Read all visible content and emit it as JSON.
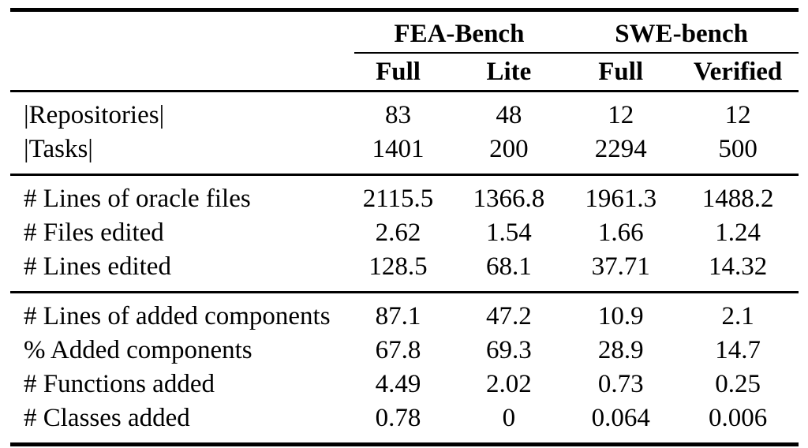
{
  "table": {
    "colors": {
      "rule": "#000000",
      "text": "#000000",
      "background": "#ffffff"
    },
    "group_headers": [
      {
        "label": "FEA-Bench",
        "span": 2
      },
      {
        "label": "SWE-bench",
        "span": 2
      }
    ],
    "sub_headers": [
      "Full",
      "Lite",
      "Full",
      "Verified"
    ],
    "sections": [
      {
        "rows": [
          {
            "label": "|Repositories|",
            "values": [
              "83",
              "48",
              "12",
              "12"
            ]
          },
          {
            "label": "|Tasks|",
            "values": [
              "1401",
              "200",
              "2294",
              "500"
            ]
          }
        ]
      },
      {
        "rows": [
          {
            "label": "# Lines of oracle files",
            "values": [
              "2115.5",
              "1366.8",
              "1961.3",
              "1488.2"
            ]
          },
          {
            "label": "# Files edited",
            "values": [
              "2.62",
              "1.54",
              "1.66",
              "1.24"
            ]
          },
          {
            "label": "# Lines edited",
            "values": [
              "128.5",
              "68.1",
              "37.71",
              "14.32"
            ]
          }
        ]
      },
      {
        "rows": [
          {
            "label": "# Lines of added components",
            "values": [
              "87.1",
              "47.2",
              "10.9",
              "2.1"
            ]
          },
          {
            "label": "% Added components",
            "values": [
              "67.8",
              "69.3",
              "28.9",
              "14.7"
            ]
          },
          {
            "label": "# Functions added",
            "values": [
              "4.49",
              "2.02",
              "0.73",
              "0.25"
            ]
          },
          {
            "label": "# Classes added",
            "values": [
              "0.78",
              "0",
              "0.064",
              "0.006"
            ]
          }
        ]
      }
    ]
  }
}
